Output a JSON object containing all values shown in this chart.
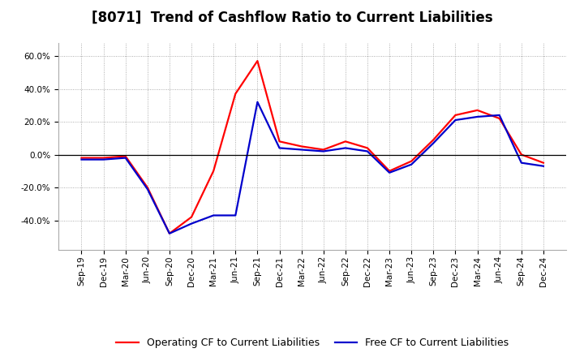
{
  "title": "[8071]  Trend of Cashflow Ratio to Current Liabilities",
  "x_labels": [
    "Sep-19",
    "Dec-19",
    "Mar-20",
    "Jun-20",
    "Sep-20",
    "Dec-20",
    "Mar-21",
    "Jun-21",
    "Sep-21",
    "Dec-21",
    "Mar-22",
    "Jun-22",
    "Sep-22",
    "Dec-22",
    "Mar-23",
    "Jun-23",
    "Sep-23",
    "Dec-23",
    "Mar-24",
    "Jun-24",
    "Sep-24",
    "Dec-24"
  ],
  "operating_cf": [
    -0.02,
    -0.02,
    -0.01,
    -0.2,
    -0.48,
    -0.38,
    -0.1,
    0.37,
    0.57,
    0.08,
    0.05,
    0.03,
    0.08,
    0.04,
    -0.1,
    -0.04,
    0.09,
    0.24,
    0.27,
    0.22,
    0.0,
    -0.05
  ],
  "free_cf": [
    -0.03,
    -0.03,
    -0.02,
    -0.21,
    -0.48,
    -0.42,
    -0.37,
    -0.37,
    0.32,
    0.04,
    0.03,
    0.02,
    0.04,
    0.02,
    -0.11,
    -0.06,
    0.07,
    0.21,
    0.23,
    0.24,
    -0.05,
    -0.07
  ],
  "operating_color": "#ff0000",
  "free_color": "#0000cc",
  "ylim": [
    -0.58,
    0.68
  ],
  "yticks": [
    -0.4,
    -0.2,
    0.0,
    0.2,
    0.4,
    0.6
  ],
  "background_color": "#ffffff",
  "grid_color": "#999999",
  "title_fontsize": 12,
  "legend_fontsize": 9,
  "tick_fontsize": 7.5
}
